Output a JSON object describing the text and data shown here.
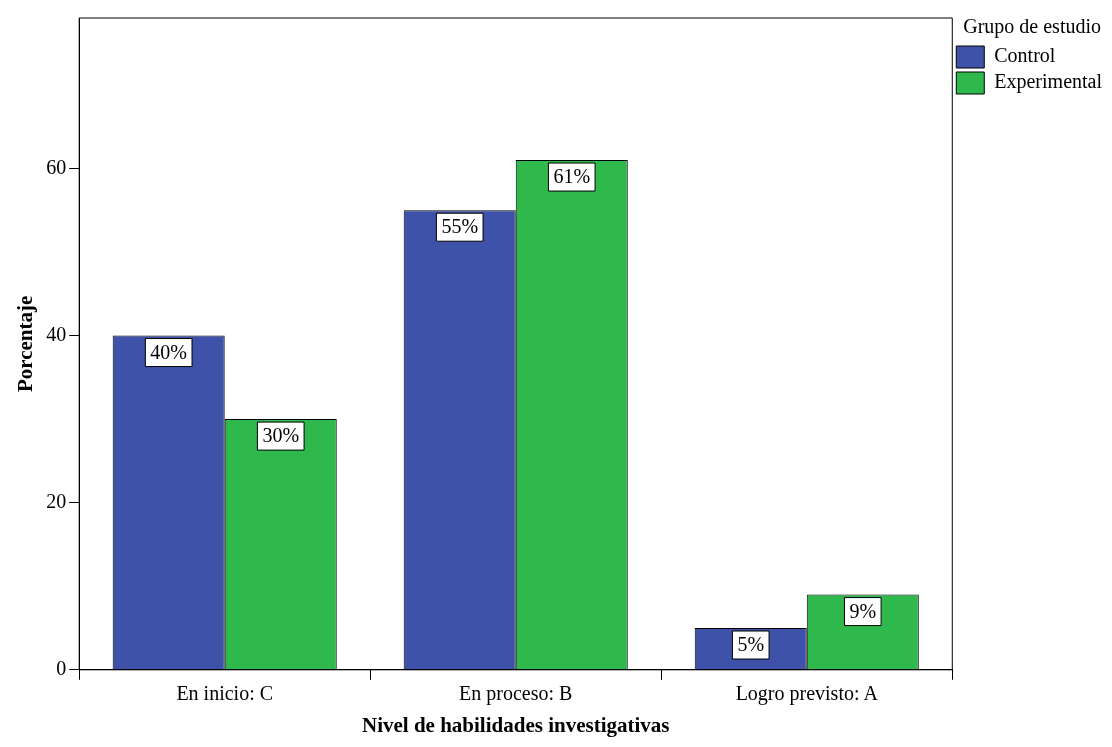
{
  "chart_data": {
    "type": "bar",
    "xlabel": "Nivel de habilidades investigativas",
    "ylabel": "Porcentaje",
    "legend_title": "Grupo de estudio",
    "categories": [
      "En inicio: C",
      "En proceso: B",
      "Logro previsto: A"
    ],
    "series": [
      {
        "name": "Control",
        "color": "#3d52a8",
        "values": [
          40,
          55,
          5
        ],
        "value_labels": [
          "40%",
          "55%",
          "5%"
        ]
      },
      {
        "name": "Experimental",
        "color": "#2fb84b",
        "values": [
          30,
          61,
          9
        ],
        "value_labels": [
          "30%",
          "61%",
          "9%"
        ]
      }
    ],
    "ylim": [
      0,
      78
    ],
    "yticks": [
      0,
      20,
      40,
      60
    ],
    "grid": false,
    "legend": "top right"
  }
}
